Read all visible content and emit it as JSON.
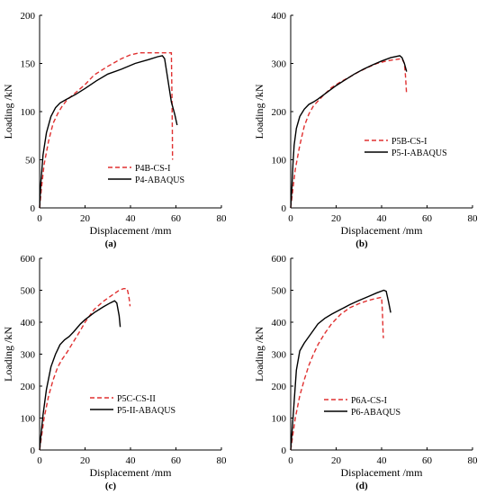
{
  "chart_data": [
    {
      "type": "line",
      "panel_label": "(a)",
      "xlabel": "Displacement /mm",
      "ylabel": "Loading /kN",
      "xlim": [
        0,
        80
      ],
      "ylim": [
        0,
        200
      ],
      "xticks": [
        0,
        20,
        40,
        60,
        80
      ],
      "yticks": [
        0,
        50,
        100,
        150,
        200
      ],
      "legend_position": "lower-right",
      "series": [
        {
          "name": "P4B-CS-I",
          "style": "dashed",
          "color": "#e03030",
          "points": [
            [
              0,
              0
            ],
            [
              0.8,
              20
            ],
            [
              2,
              45
            ],
            [
              4,
              70
            ],
            [
              6,
              88
            ],
            [
              8,
              98
            ],
            [
              10,
              106
            ],
            [
              12,
              112
            ],
            [
              16,
              120
            ],
            [
              20,
              128
            ],
            [
              24,
              138
            ],
            [
              30,
              147
            ],
            [
              36,
              155
            ],
            [
              40,
              159
            ],
            [
              44,
              161
            ],
            [
              48,
              161
            ],
            [
              52,
              161
            ],
            [
              56,
              161
            ],
            [
              58,
              161
            ],
            [
              58.2,
              120
            ],
            [
              58.4,
              80
            ],
            [
              58.5,
              50
            ]
          ]
        },
        {
          "name": "P4-ABAQUS",
          "style": "solid",
          "color": "#000000",
          "points": [
            [
              0,
              0
            ],
            [
              0.5,
              25
            ],
            [
              1.5,
              55
            ],
            [
              3,
              78
            ],
            [
              5,
              95
            ],
            [
              7,
              104
            ],
            [
              9,
              109
            ],
            [
              12,
              113
            ],
            [
              16,
              118
            ],
            [
              20,
              124
            ],
            [
              25,
              132
            ],
            [
              30,
              139
            ],
            [
              36,
              144
            ],
            [
              42,
              150
            ],
            [
              48,
              154
            ],
            [
              52,
              157
            ],
            [
              54,
              158
            ],
            [
              55,
              155
            ],
            [
              56,
              140
            ],
            [
              57,
              125
            ],
            [
              58,
              110
            ],
            [
              59.5,
              97
            ],
            [
              60.5,
              86
            ]
          ]
        }
      ]
    },
    {
      "type": "line",
      "panel_label": "(b)",
      "xlabel": "Displacement /mm",
      "ylabel": "Loading /kN",
      "xlim": [
        0,
        80
      ],
      "ylim": [
        0,
        400
      ],
      "xticks": [
        0,
        20,
        40,
        60,
        80
      ],
      "yticks": [
        0,
        100,
        200,
        300,
        400
      ],
      "legend_position": "lower-right",
      "series": [
        {
          "name": "P5B-CS-I",
          "style": "dashed",
          "color": "#e03030",
          "points": [
            [
              0,
              0
            ],
            [
              1,
              40
            ],
            [
              2,
              80
            ],
            [
              4,
              130
            ],
            [
              6,
              170
            ],
            [
              8,
              195
            ],
            [
              10,
              212
            ],
            [
              14,
              232
            ],
            [
              18,
              250
            ],
            [
              22,
              262
            ],
            [
              26,
              272
            ],
            [
              30,
              283
            ],
            [
              34,
              292
            ],
            [
              38,
              300
            ],
            [
              42,
              305
            ],
            [
              46,
              308
            ],
            [
              49,
              310
            ],
            [
              50,
              300
            ],
            [
              50.5,
              275
            ],
            [
              51,
              235
            ]
          ]
        },
        {
          "name": "P5-I-ABAQUS",
          "style": "solid",
          "color": "#000000",
          "points": [
            [
              0,
              0
            ],
            [
              0.5,
              40
            ],
            [
              1,
              90
            ],
            [
              1.5,
              130
            ],
            [
              2.5,
              165
            ],
            [
              4,
              190
            ],
            [
              6,
              205
            ],
            [
              8,
              215
            ],
            [
              10,
              220
            ],
            [
              12,
              226
            ],
            [
              16,
              240
            ],
            [
              20,
              254
            ],
            [
              24,
              266
            ],
            [
              28,
              278
            ],
            [
              32,
              288
            ],
            [
              36,
              297
            ],
            [
              40,
              305
            ],
            [
              44,
              312
            ],
            [
              48,
              316
            ],
            [
              49,
              312
            ],
            [
              50,
              300
            ],
            [
              51,
              283
            ]
          ]
        }
      ]
    },
    {
      "type": "line",
      "panel_label": "(c)",
      "xlabel": "Displacement /mm",
      "ylabel": "Loading /kN",
      "xlim": [
        0,
        80
      ],
      "ylim": [
        0,
        600
      ],
      "xticks": [
        0,
        20,
        40,
        60,
        80
      ],
      "yticks": [
        0,
        100,
        200,
        300,
        400,
        500,
        600
      ],
      "legend_position": "lower-right",
      "series": [
        {
          "name": "P5C-CS-II",
          "style": "dashed",
          "color": "#e03030",
          "points": [
            [
              0,
              0
            ],
            [
              1,
              50
            ],
            [
              2,
              100
            ],
            [
              4,
              170
            ],
            [
              6,
              220
            ],
            [
              8,
              260
            ],
            [
              10,
              285
            ],
            [
              12,
              305
            ],
            [
              15,
              340
            ],
            [
              18,
              375
            ],
            [
              20,
              400
            ],
            [
              24,
              440
            ],
            [
              28,
              465
            ],
            [
              32,
              485
            ],
            [
              35,
              500
            ],
            [
              37,
              505
            ],
            [
              38.5,
              505
            ],
            [
              39,
              490
            ],
            [
              39.5,
              470
            ],
            [
              39.8,
              450
            ]
          ]
        },
        {
          "name": "P5-II-ABAQUS",
          "style": "solid",
          "color": "#000000",
          "points": [
            [
              0,
              0
            ],
            [
              0.5,
              40
            ],
            [
              1.5,
              110
            ],
            [
              3,
              190
            ],
            [
              5,
              260
            ],
            [
              7,
              300
            ],
            [
              9,
              330
            ],
            [
              11,
              345
            ],
            [
              13,
              355
            ],
            [
              15,
              370
            ],
            [
              18,
              395
            ],
            [
              20,
              408
            ],
            [
              24,
              430
            ],
            [
              28,
              448
            ],
            [
              31,
              460
            ],
            [
              33,
              467
            ],
            [
              34,
              460
            ],
            [
              35,
              420
            ],
            [
              35.5,
              385
            ]
          ]
        }
      ]
    },
    {
      "type": "line",
      "panel_label": "(d)",
      "xlabel": "Displacement /mm",
      "ylabel": "Loading /kN",
      "xlim": [
        0,
        80
      ],
      "ylim": [
        0,
        600
      ],
      "xticks": [
        0,
        20,
        40,
        60,
        80
      ],
      "yticks": [
        0,
        100,
        200,
        300,
        400,
        500,
        600
      ],
      "legend_position": "lower-right",
      "series": [
        {
          "name": "P6A-CS-I",
          "style": "dashed",
          "color": "#e03030",
          "points": [
            [
              0,
              0
            ],
            [
              1,
              50
            ],
            [
              2,
              100
            ],
            [
              4,
              170
            ],
            [
              6,
              220
            ],
            [
              8,
              265
            ],
            [
              10,
              300
            ],
            [
              12,
              330
            ],
            [
              15,
              365
            ],
            [
              18,
              395
            ],
            [
              22,
              425
            ],
            [
              26,
              445
            ],
            [
              30,
              458
            ],
            [
              34,
              468
            ],
            [
              38,
              475
            ],
            [
              40,
              478
            ],
            [
              40.3,
              440
            ],
            [
              40.6,
              380
            ],
            [
              40.8,
              350
            ]
          ]
        },
        {
          "name": "P6-ABAQUS",
          "style": "solid",
          "color": "#000000",
          "points": [
            [
              0,
              0
            ],
            [
              0.5,
              50
            ],
            [
              1.5,
              150
            ],
            [
              2.5,
              250
            ],
            [
              4,
              310
            ],
            [
              6,
              335
            ],
            [
              8,
              355
            ],
            [
              10,
              375
            ],
            [
              12,
              395
            ],
            [
              15,
              412
            ],
            [
              18,
              425
            ],
            [
              22,
              440
            ],
            [
              26,
              455
            ],
            [
              30,
              468
            ],
            [
              34,
              480
            ],
            [
              38,
              492
            ],
            [
              41,
              500
            ],
            [
              42,
              497
            ],
            [
              43,
              465
            ],
            [
              44,
              430
            ]
          ]
        }
      ]
    }
  ]
}
